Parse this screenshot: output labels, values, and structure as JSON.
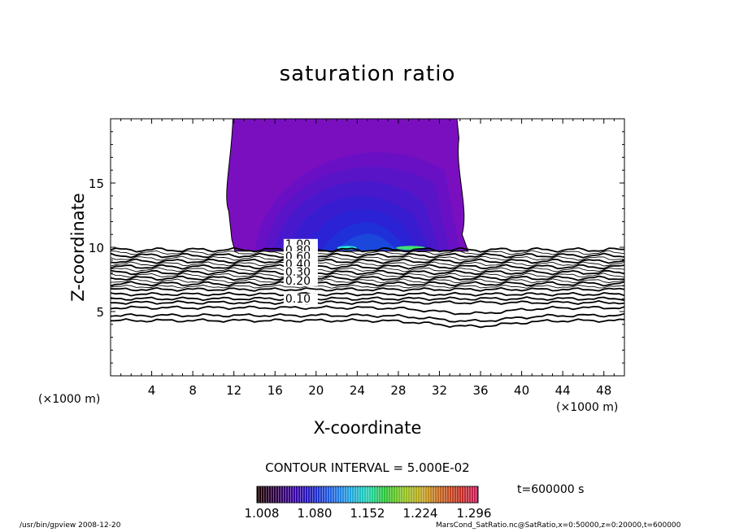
{
  "chart_data": {
    "type": "heatmap",
    "title": "saturation ratio",
    "xlabel": "X-coordinate",
    "ylabel": "Z-coordinate",
    "x_unit_left": "(×1000 m)",
    "x_unit_right": "(×1000 m)",
    "xlim": [
      0,
      50
    ],
    "ylim": [
      0,
      20
    ],
    "x_ticks": [
      4,
      8,
      12,
      16,
      20,
      24,
      28,
      32,
      36,
      40,
      44,
      48
    ],
    "y_ticks": [
      5,
      10,
      15
    ],
    "contour_labels": [
      {
        "text": "1.00",
        "x": 17.0,
        "z": 9.95
      },
      {
        "text": "0.80",
        "x": 17.0,
        "z": 9.5
      },
      {
        "text": "0.60",
        "x": 17.0,
        "z": 9.0
      },
      {
        "text": "0.40",
        "x": 17.0,
        "z": 8.4
      },
      {
        "text": "0.30",
        "x": 17.0,
        "z": 7.8
      },
      {
        "text": "0.20",
        "x": 17.0,
        "z": 7.1
      },
      {
        "text": "0.10",
        "x": 17.0,
        "z": 5.7
      }
    ],
    "supersaturated_region": {
      "x_left": 11.5,
      "x_right": 34.8,
      "z_bottom": 9.7,
      "z_top": 20
    },
    "contour_interval": "CONTOUR INTERVAL = 5.000E-02",
    "colorbar": {
      "min": 1.008,
      "max": 1.296,
      "tick_labels": [
        "1.008",
        "1.080",
        "1.152",
        "1.224",
        "1.296"
      ],
      "colors": [
        "#1a0000",
        "#2a0040",
        "#3a00a0",
        "#2020c0",
        "#2060e0",
        "#20a0e0",
        "#20d0b0",
        "#30c030",
        "#90c020",
        "#c0a020",
        "#c06020",
        "#c03020",
        "#c02060"
      ]
    },
    "time_label": "t=600000 s"
  },
  "footer": {
    "left": "/usr/bin/gpview   2008-12-20",
    "right": "MarsCond_SatRatio.nc@SatRatio,x=0:50000,z=0:20000,t=600000"
  }
}
